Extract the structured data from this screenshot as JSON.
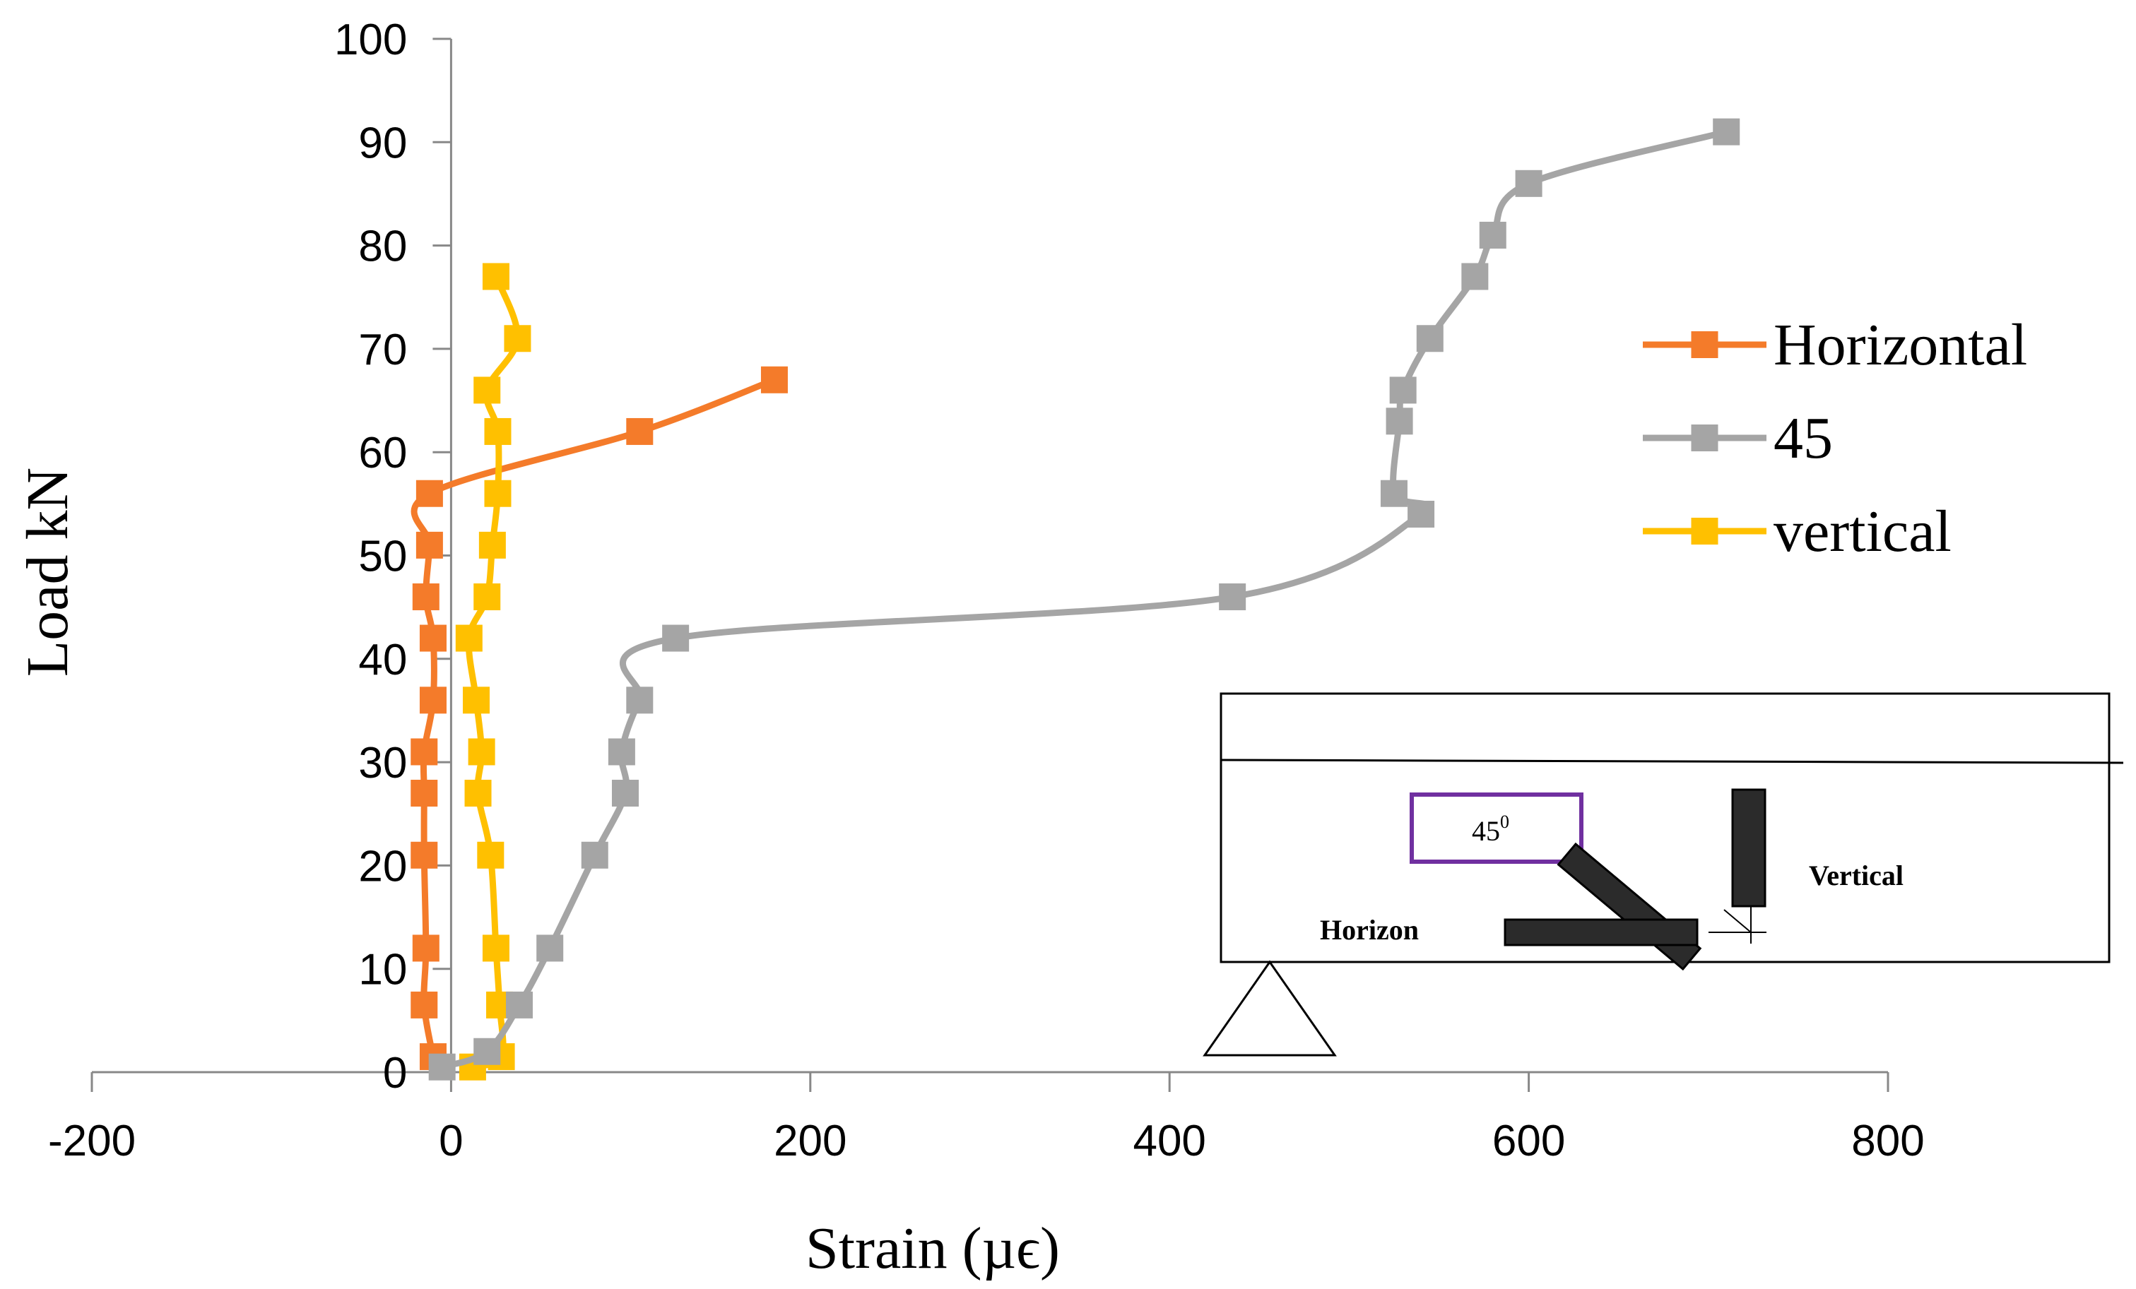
{
  "chart_data": {
    "type": "line",
    "title": "",
    "xlabel": "Strain (µϵ)",
    "ylabel": "Load kN",
    "xlim": [
      -200,
      800
    ],
    "ylim": [
      0,
      100
    ],
    "x_ticks": [
      -200,
      0,
      200,
      400,
      600,
      800
    ],
    "y_ticks": [
      0,
      10,
      20,
      30,
      40,
      50,
      60,
      70,
      80,
      90,
      100
    ],
    "x_tick_labels": [
      "-200",
      "0",
      "200",
      "400",
      "600",
      "800"
    ],
    "y_tick_labels": [
      "0",
      "10",
      "20",
      "30",
      "40",
      "50",
      "60",
      "70",
      "80",
      "90",
      "100"
    ],
    "grid": false,
    "legend_position": "right",
    "series": [
      {
        "name": "Horizontal",
        "color": "#F47B2A",
        "marker": "square",
        "points": [
          [
            -10,
            1.5
          ],
          [
            -15,
            6.5
          ],
          [
            -14,
            12
          ],
          [
            -15,
            21
          ],
          [
            -15,
            27
          ],
          [
            -15,
            31
          ],
          [
            -10,
            36
          ],
          [
            -10,
            42
          ],
          [
            -14,
            46
          ],
          [
            -12,
            51
          ],
          [
            -12,
            56
          ],
          [
            105,
            62
          ],
          [
            180,
            67
          ]
        ]
      },
      {
        "name": "45",
        "color": "#A5A5A5",
        "marker": "square",
        "points": [
          [
            -5,
            0.5
          ],
          [
            20,
            2
          ],
          [
            38,
            6.5
          ],
          [
            55,
            12
          ],
          [
            80,
            21
          ],
          [
            97,
            27
          ],
          [
            95,
            31
          ],
          [
            105,
            36
          ],
          [
            125,
            42
          ],
          [
            435,
            46
          ],
          [
            540,
            54
          ],
          [
            525,
            56
          ],
          [
            528,
            63
          ],
          [
            530,
            66
          ],
          [
            545,
            71
          ],
          [
            570,
            77
          ],
          [
            580,
            81
          ],
          [
            600,
            86
          ],
          [
            710,
            91
          ]
        ]
      },
      {
        "name": "vertical",
        "color": "#FFC000",
        "marker": "square",
        "points": [
          [
            12,
            0.5
          ],
          [
            28,
            1.5
          ],
          [
            27,
            6.5
          ],
          [
            25,
            12
          ],
          [
            22,
            21
          ],
          [
            15,
            27
          ],
          [
            17,
            31
          ],
          [
            14,
            36
          ],
          [
            10,
            42
          ],
          [
            20,
            46
          ],
          [
            23,
            51
          ],
          [
            26,
            56
          ],
          [
            26,
            62
          ],
          [
            20,
            66
          ],
          [
            37,
            71
          ],
          [
            25,
            77
          ]
        ]
      }
    ]
  },
  "inset": {
    "angle_label": "45",
    "angle_superscript": "0",
    "vertical_label": "Vertical",
    "horizon_label": "Horizon"
  }
}
